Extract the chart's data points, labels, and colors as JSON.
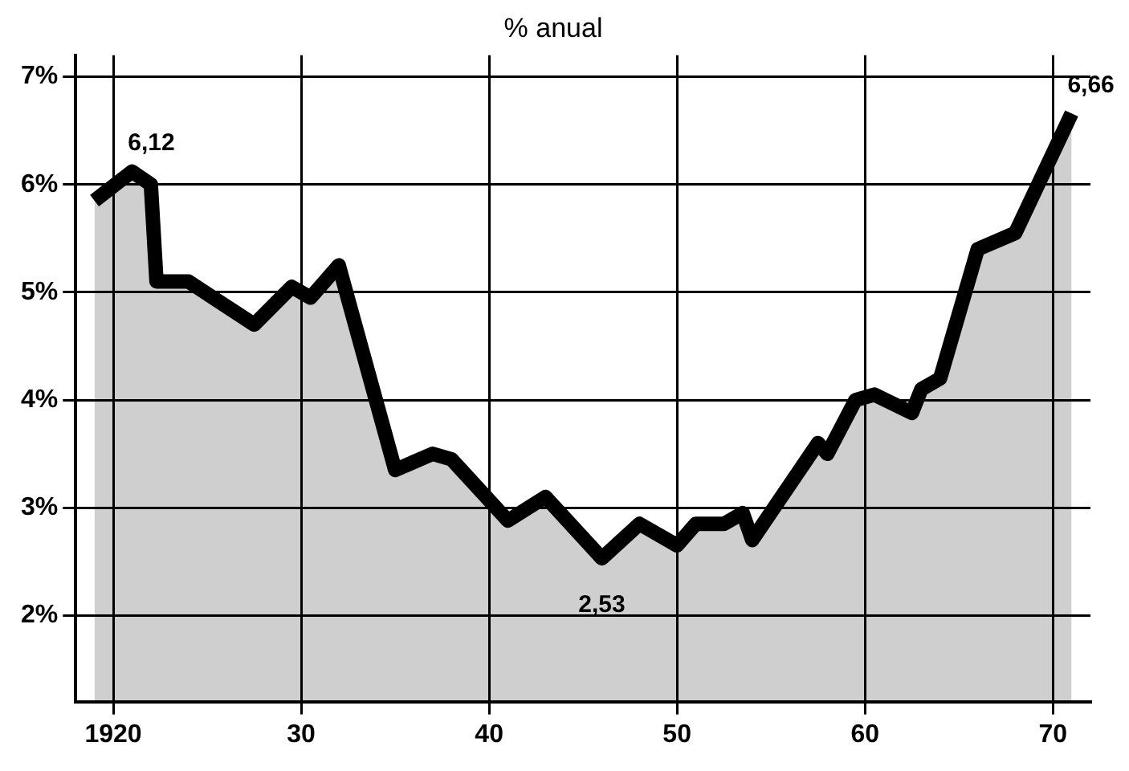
{
  "chart_data": {
    "type": "area",
    "title": "% anual",
    "x": [
      1919,
      1921,
      1922,
      1922.3,
      1924,
      1927.5,
      1929.5,
      1930.5,
      1932,
      1935,
      1937,
      1938,
      1941,
      1943,
      1946,
      1948,
      1950,
      1951,
      1952.5,
      1953.5,
      1954,
      1957.5,
      1958,
      1959.5,
      1960.5,
      1962.5,
      1963,
      1964,
      1966,
      1968,
      1971
    ],
    "series": [
      {
        "color": "#000000",
        "values": [
          5.85,
          6.12,
          6.0,
          5.1,
          5.1,
          4.7,
          5.05,
          4.95,
          5.25,
          3.35,
          3.5,
          3.45,
          2.88,
          3.1,
          2.53,
          2.85,
          2.65,
          2.85,
          2.85,
          2.95,
          2.7,
          3.6,
          3.5,
          4.0,
          4.05,
          3.88,
          4.1,
          4.2,
          5.4,
          5.55,
          6.66
        ]
      }
    ],
    "xlim": [
      1918,
      1972
    ],
    "xticks": [
      {
        "value": 1920,
        "label": "1920"
      },
      {
        "value": 1930,
        "label": "30"
      },
      {
        "value": 1940,
        "label": "40"
      },
      {
        "value": 1950,
        "label": "50"
      },
      {
        "value": 1960,
        "label": "60"
      },
      {
        "value": 1970,
        "label": "70"
      }
    ],
    "ylim": [
      1.2,
      7.2
    ],
    "yticks": [
      {
        "value": 2,
        "label": "2%"
      },
      {
        "value": 3,
        "label": "3%"
      },
      {
        "value": 4,
        "label": "4%"
      },
      {
        "value": 5,
        "label": "5%"
      },
      {
        "value": 6,
        "label": "6%"
      },
      {
        "value": 7,
        "label": "7%"
      }
    ],
    "grid": true,
    "legend": false,
    "marker": "none",
    "line_style": "solid",
    "annotations": [
      {
        "text": "6,12",
        "x": 1921,
        "y": 6.12
      },
      {
        "text": "2,53",
        "x": 1946,
        "y": 2.53
      },
      {
        "text": "6,66",
        "x": 1971,
        "y": 6.66
      }
    ]
  }
}
